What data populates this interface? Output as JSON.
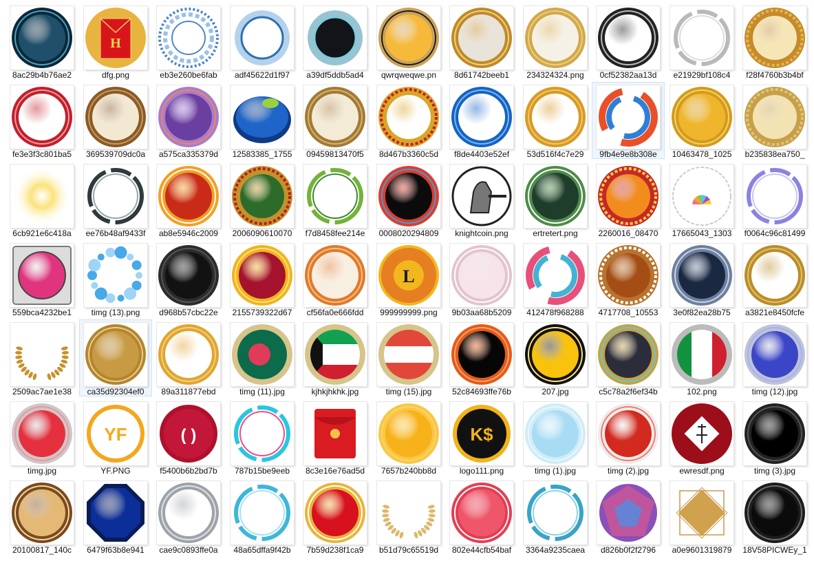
{
  "files": [
    {
      "name": "8ac29b4b76ae2",
      "icon": "teal-glossy-medallion-icon",
      "fill": "#1f4f6a",
      "ring": "#0b2738",
      "accent": "#4aa3c0",
      "style": "ring"
    },
    {
      "name": "dfg.png",
      "icon": "red-envelope-coin-icon",
      "fill": "#e8b440",
      "ring": "#c9951f",
      "accent": "#d9151c",
      "style": "envelope"
    },
    {
      "name": "eb3e260be6fab",
      "icon": "blue-lace-mandala-icon",
      "fill": "#ffffff",
      "ring": "#4e86c6",
      "accent": "#9cc0e6",
      "style": "lace"
    },
    {
      "name": "adf45622d1f97",
      "icon": "blue-splash-circle-icon",
      "fill": "#ffffff",
      "ring": "#6aa6d8",
      "accent": "#2d6fb0",
      "style": "splash"
    },
    {
      "name": "a39df5ddb5ad4",
      "icon": "dark-burst-circle-icon",
      "fill": "#121418",
      "ring": "#2f8aa8",
      "accent": "#7fc9d8",
      "style": "splash"
    },
    {
      "name": "qwrqweqwe.pn",
      "icon": "gold-star-coin-icon",
      "fill": "#f6b93a",
      "ring": "#caa25a",
      "accent": "#1c1c1c",
      "style": "ring"
    },
    {
      "name": "8d61742beeb1",
      "icon": "gold-ribbon-frame-icon",
      "fill": "#e9e4da",
      "ring": "#c08a2a",
      "accent": "#f0d27a",
      "style": "ring"
    },
    {
      "name": "234324324.png",
      "icon": "gold-star-ring-icon",
      "fill": "#f5f1e6",
      "ring": "#d3a849",
      "accent": "#e9cf86",
      "style": "ring"
    },
    {
      "name": "0cf52382aa13d",
      "icon": "silver-ring-icon",
      "fill": "#ffffff",
      "ring": "#222222",
      "accent": "#bbbbbb",
      "style": "ring"
    },
    {
      "name": "e21929bf108c4",
      "icon": "silver-swirl-ring-icon",
      "fill": "#ffffff",
      "ring": "#b9b9b9",
      "accent": "#dddddd",
      "style": "thin"
    },
    {
      "name": "f28f4760b3b4bf",
      "icon": "gold-ornate-frame-icon",
      "fill": "#f6e6b6",
      "ring": "#c58a2c",
      "accent": "#e5b64a",
      "style": "ornate"
    },
    {
      "name": "fe3e3f3c801ba5",
      "icon": "red-ornate-ring-icon",
      "fill": "#ffffff",
      "ring": "#c21f2b",
      "accent": "#e8a0a0",
      "style": "ring"
    },
    {
      "name": "369539709dc0a",
      "icon": "bronze-pearl-ring-icon",
      "fill": "#f3e9d2",
      "ring": "#8b5a28",
      "accent": "#c79a5a",
      "style": "ring"
    },
    {
      "name": "a575ca335379d",
      "icon": "purple-geometric-circle-icon",
      "fill": "#6a3fa0",
      "ring": "#a77bd6",
      "accent": "#f08b3b",
      "style": "ring"
    },
    {
      "name": "12583385_1755",
      "icon": "blue-glossy-oval-icon",
      "fill": "#1f64c8",
      "ring": "#0f3a86",
      "accent": "#9bd23c",
      "style": "oval"
    },
    {
      "name": "09459813470f5",
      "icon": "bronze-bezel-ring-icon",
      "fill": "#f4ebd7",
      "ring": "#a27a36",
      "accent": "#d4b56f",
      "style": "ring"
    },
    {
      "name": "8d467b3360c5d",
      "icon": "gold-star-wreath-icon",
      "fill": "#ffffff",
      "ring": "#d9a628",
      "accent": "#c21f2b",
      "style": "ornate"
    },
    {
      "name": "f8de4403e52ef",
      "icon": "blue-neon-ring-icon",
      "fill": "#ffffff",
      "ring": "#1463c6",
      "accent": "#7fb8f0",
      "style": "ring"
    },
    {
      "name": "53d516f4c7e29",
      "icon": "gold-thin-ring-icon",
      "fill": "#ffffff",
      "ring": "#d99a24",
      "accent": "#f1c66b",
      "style": "ring"
    },
    {
      "name": "9fb4e9e8b308e",
      "icon": "fire-ice-swirl-icon",
      "fill": "#ffffff",
      "ring": "#e9502a",
      "accent": "#2f7fd8",
      "style": "swirl"
    },
    {
      "name": "10463478_1025",
      "icon": "gold-coin-icon",
      "fill": "#efb62d",
      "ring": "#d39b1c",
      "accent": "#f6d36c",
      "style": "ring"
    },
    {
      "name": "b235838ea750_",
      "icon": "gold-scalloped-frame-icon",
      "fill": "#f3e2b2",
      "ring": "#c6a049",
      "accent": "#e3c278",
      "style": "ornate"
    },
    {
      "name": "6cb921e6c418a",
      "icon": "golden-glow-icon",
      "fill": "#fbe37b",
      "ring": "#fff4c4",
      "accent": "#f5b833",
      "style": "glow"
    },
    {
      "name": "ee76b48af9433f",
      "icon": "smoke-ring-icon",
      "fill": "#ffffff",
      "ring": "#2f3a3c",
      "accent": "#9aa5a6",
      "style": "thin"
    },
    {
      "name": "ab8e5946c2009",
      "icon": "red-orange-button-icon",
      "fill": "#c92b19",
      "ring": "#f2a023",
      "accent": "#ffffff",
      "style": "ring"
    },
    {
      "name": "2006090610070",
      "icon": "green-ornate-medallion-icon",
      "fill": "#2d6b2a",
      "ring": "#c2932b",
      "accent": "#b71c1c",
      "style": "ornate"
    },
    {
      "name": "f7d8458fee214e",
      "icon": "green-leaf-wreath-icon",
      "fill": "#ffffff",
      "ring": "#74b23a",
      "accent": "#3c8a2a",
      "style": "thin"
    },
    {
      "name": "0008020294809",
      "icon": "rainbow-ring-icon",
      "fill": "#0b0b0b",
      "ring": "#e43a2c",
      "accent": "#2aa8e0",
      "style": "ring"
    },
    {
      "name": "knightcoin.png",
      "icon": "knight-coin-icon",
      "fill": "#ffffff",
      "ring": "#222222",
      "accent": "#777777",
      "style": "knight"
    },
    {
      "name": "ertretert.png",
      "icon": "laurel-green-badge-icon",
      "fill": "#1e3d2b",
      "ring": "#4f8b4a",
      "accent": "#ffffff",
      "style": "ring"
    },
    {
      "name": "2260016_08470",
      "icon": "orange-ornate-medallion-icon",
      "fill": "#f28c1d",
      "ring": "#c62828",
      "accent": "#f7d046",
      "style": "ornate"
    },
    {
      "name": "17665043_1303",
      "icon": "lemon-scalloped-badge-icon",
      "fill": "#ffffff",
      "ring": "#cccccc",
      "accent": "#f36a8a",
      "style": "lemon"
    },
    {
      "name": "f0064c96c81499",
      "icon": "purple-glow-ring-icon",
      "fill": "#ffffff",
      "ring": "#8a83e0",
      "accent": "#c8c4f4",
      "style": "thin"
    },
    {
      "name": "559bca4232be1",
      "icon": "pink-glossy-button-icon",
      "fill": "#e0357e",
      "ring": "#7a7a7a",
      "accent": "#f0a6c9",
      "style": "square"
    },
    {
      "name": "timg (13).png",
      "icon": "blue-bubbles-ring-icon",
      "fill": "#ffffff",
      "ring": "#48a8e8",
      "accent": "#9fd4f7",
      "style": "bubbles"
    },
    {
      "name": "d968b57cbc22e",
      "icon": "black-glossy-button-icon",
      "fill": "#121212",
      "ring": "#2c2c2c",
      "accent": "#555555",
      "style": "ring"
    },
    {
      "name": "2155739322d67",
      "icon": "crimson-gold-button-icon",
      "fill": "#a4122d",
      "ring": "#f1b51b",
      "accent": "#fbe08a",
      "style": "ring"
    },
    {
      "name": "cf56fa0e666fdd",
      "icon": "orange-rope-ring-icon",
      "fill": "#f8efe3",
      "ring": "#e07a2a",
      "accent": "#f7c08a",
      "style": "ring"
    },
    {
      "name": "999999999.png",
      "icon": "lhc-coin-icon",
      "fill": "#e67e22",
      "ring": "#f2b71f",
      "accent": "#1a1a1a",
      "style": "letter",
      "letter": "L"
    },
    {
      "name": "9b03aa68b5209",
      "icon": "pink-lace-circle-icon",
      "fill": "#f6e4ea",
      "ring": "#e4c3cf",
      "accent": "#ffffff",
      "style": "ring"
    },
    {
      "name": "412478f968288",
      "icon": "purple-galaxy-icon",
      "fill": "#6b2f92",
      "ring": "#e8507a",
      "accent": "#42b3d5",
      "style": "swirl"
    },
    {
      "name": "4717708_10553",
      "icon": "brown-ornate-ring-icon",
      "fill": "#a44d14",
      "ring": "#b8742e",
      "accent": "#ffffff",
      "style": "ornate"
    },
    {
      "name": "3e0f82ea28b75",
      "icon": "starry-night-orb-icon",
      "fill": "#1b2841",
      "ring": "#6d7f9c",
      "accent": "#c9d5e8",
      "style": "ring"
    },
    {
      "name": "a3821e8450fcfe",
      "icon": "gold-banner-frame-icon",
      "fill": "#ffffff",
      "ring": "#b98d2a",
      "accent": "#e3c069",
      "style": "ring"
    },
    {
      "name": "2509ac7ae1e38",
      "icon": "gold-laurel-icon",
      "fill": "#ffffff",
      "ring": "#c7912b",
      "accent": "#e7bf63",
      "style": "laurel"
    },
    {
      "name": "ca35d92304ef0",
      "icon": "gold-stitched-coin-icon",
      "fill": "#c89a43",
      "ring": "#b3852f",
      "accent": "#e9cf8a",
      "style": "ring"
    },
    {
      "name": "89a311877ebd",
      "icon": "gold-gradient-ring-icon",
      "fill": "#ffffff",
      "ring": "#e0a532",
      "accent": "#f4d07d",
      "style": "ring"
    },
    {
      "name": "timg (11).jpg",
      "icon": "bangladesh-flag-button-icon",
      "fill": "#0c6b4a",
      "ring": "#d6c48a",
      "accent": "#e13b5a",
      "style": "flag-dot"
    },
    {
      "name": "kjhkjhkhk.jpg",
      "icon": "kuwait-flag-button-icon",
      "fill": "#ffffff",
      "ring": "#d6c48a",
      "accent": "#12a150",
      "style": "flag-kw"
    },
    {
      "name": "timg (15).jpg",
      "icon": "austria-flag-button-icon",
      "fill": "#ffffff",
      "ring": "#d6c48a",
      "accent": "#e1483a",
      "style": "flag-at"
    },
    {
      "name": "52c84693ffe76b",
      "icon": "black-orange-bezel-icon",
      "fill": "#060606",
      "ring": "#e65a1a",
      "accent": "#f5a56a",
      "style": "ring"
    },
    {
      "name": "207.jpg",
      "icon": "yellow-black-rope-icon",
      "fill": "#f8c20d",
      "ring": "#111111",
      "accent": "#ffe27a",
      "style": "ring"
    },
    {
      "name": "c5c78a2f6ef34b",
      "icon": "dark-gold-crescent-icon",
      "fill": "#2c2d3a",
      "ring": "#c7a244",
      "accent": "#5ecbd8",
      "style": "ring"
    },
    {
      "name": "102.png",
      "icon": "italy-flag-button-icon",
      "fill": "#ffffff",
      "ring": "#bbbbbb",
      "accent": "#d01f2f",
      "style": "flag-it"
    },
    {
      "name": "timg (12).jpg",
      "icon": "blue-glossy-button-icon",
      "fill": "#3b45c8",
      "ring": "#bfc3d3",
      "accent": "#a3b0ff",
      "style": "ring"
    },
    {
      "name": "timg.jpg",
      "icon": "red-glossy-button-icon",
      "fill": "#e5303f",
      "ring": "#c9c9c9",
      "accent": "#ff8e97",
      "style": "ring"
    },
    {
      "name": "YF.PNG",
      "icon": "yf-coin-icon",
      "fill": "#ffffff",
      "ring": "#f4a71d",
      "accent": "#f4a71d",
      "style": "text",
      "text": "YF"
    },
    {
      "name": "f5400b6b2bd7b",
      "icon": "crimson-bracket-coin-icon",
      "fill": "#c21738",
      "ring": "#b0102c",
      "accent": "#ffffff",
      "style": "text",
      "text": "( )"
    },
    {
      "name": "787b15be9eeb",
      "icon": "neon-splash-circle-icon",
      "fill": "#ffffff",
      "ring": "#27c7e0",
      "accent": "#f14a8e",
      "style": "thin"
    },
    {
      "name": "8c3e16e76ad5d",
      "icon": "red-envelope-icon",
      "fill": "#d81c21",
      "ring": "#ffffff",
      "accent": "#f2c24a",
      "style": "packet"
    },
    {
      "name": "7657b240bb8d",
      "icon": "orange-flat-coin-icon",
      "fill": "#f7b21b",
      "ring": "#f8c744",
      "accent": "#ffd36b",
      "style": "ring"
    },
    {
      "name": "logo111.png",
      "icon": "ks-dollar-coin-icon",
      "fill": "#111111",
      "ring": "#f2b31a",
      "accent": "#f2b31a",
      "style": "text",
      "text": "K$"
    },
    {
      "name": "timg (1).jpg",
      "icon": "light-blue-glossy-icon",
      "fill": "#a8dcf4",
      "ring": "#d0ecf8",
      "accent": "#eaf7fd",
      "style": "ring"
    },
    {
      "name": "timg (2).jpg",
      "icon": "red-shaded-button-icon",
      "fill": "#d22a1e",
      "ring": "#ececec",
      "accent": "#f27a6a",
      "style": "ring"
    },
    {
      "name": "ewresdf.png",
      "icon": "dark-red-calligraphy-coin-icon",
      "fill": "#9c0e1a",
      "ring": "#8a0b16",
      "accent": "#ffffff",
      "style": "diamond"
    },
    {
      "name": "timg (3).jpg",
      "icon": "black-shadow-button-icon",
      "fill": "#000000",
      "ring": "#222222",
      "accent": "#555555",
      "style": "ring"
    },
    {
      "name": "20100817_140c",
      "icon": "bronze-damask-coin-icon",
      "fill": "#e4b975",
      "ring": "#7b4a1f",
      "accent": "#f4d9a5",
      "style": "ring"
    },
    {
      "name": "6479f63b8e941",
      "icon": "blue-octagon-badge-icon",
      "fill": "#0c2e98",
      "ring": "#0a1c55",
      "accent": "#3a6ee8",
      "style": "octagon"
    },
    {
      "name": "cae9c0893ffe0a",
      "icon": "silver-porthole-icon",
      "fill": "#ffffff",
      "ring": "#9da3a8",
      "accent": "#dfe3e6",
      "style": "ring"
    },
    {
      "name": "48a65dffa9f42b",
      "icon": "cyan-thin-ring-icon",
      "fill": "#ffffff",
      "ring": "#3fb6d9",
      "accent": "#a9e2f2",
      "style": "thin"
    },
    {
      "name": "7b59d238f1ca9",
      "icon": "red-gold-ring-icon",
      "fill": "#d8111e",
      "ring": "#e9b43b",
      "accent": "#ffffff",
      "style": "ring"
    },
    {
      "name": "b51d79c65519d",
      "icon": "gold-laurel-ring-icon",
      "fill": "#ffffff",
      "ring": "#dcb86a",
      "accent": "#e9cf86",
      "style": "laurel"
    },
    {
      "name": "802e44cfb54baf",
      "icon": "pink-red-seal-icon",
      "fill": "#f0566a",
      "ring": "#e33e54",
      "accent": "#ffffff",
      "style": "ring"
    },
    {
      "name": "3364a9235caea",
      "icon": "teal-sprout-ring-icon",
      "fill": "#ffffff",
      "ring": "#37a4c8",
      "accent": "#8ed3e6",
      "style": "thin"
    },
    {
      "name": "d826b0f2f2796",
      "icon": "purple-polygon-orb-icon",
      "fill": "#8a4fb9",
      "ring": "#e25a8a",
      "accent": "#4f8fe0",
      "style": "poly"
    },
    {
      "name": "a0e9601319879",
      "icon": "gold-diamond-frame-icon",
      "fill": "#ffffff",
      "ring": "#c59a4c",
      "accent": "#d0a24e",
      "style": "diamond-gold"
    },
    {
      "name": "18V58PICWEy_1",
      "icon": "black-glass-orb-icon",
      "fill": "#0b0b0b",
      "ring": "#1c1c1c",
      "accent": "#6d6d6d",
      "style": "ring"
    }
  ]
}
